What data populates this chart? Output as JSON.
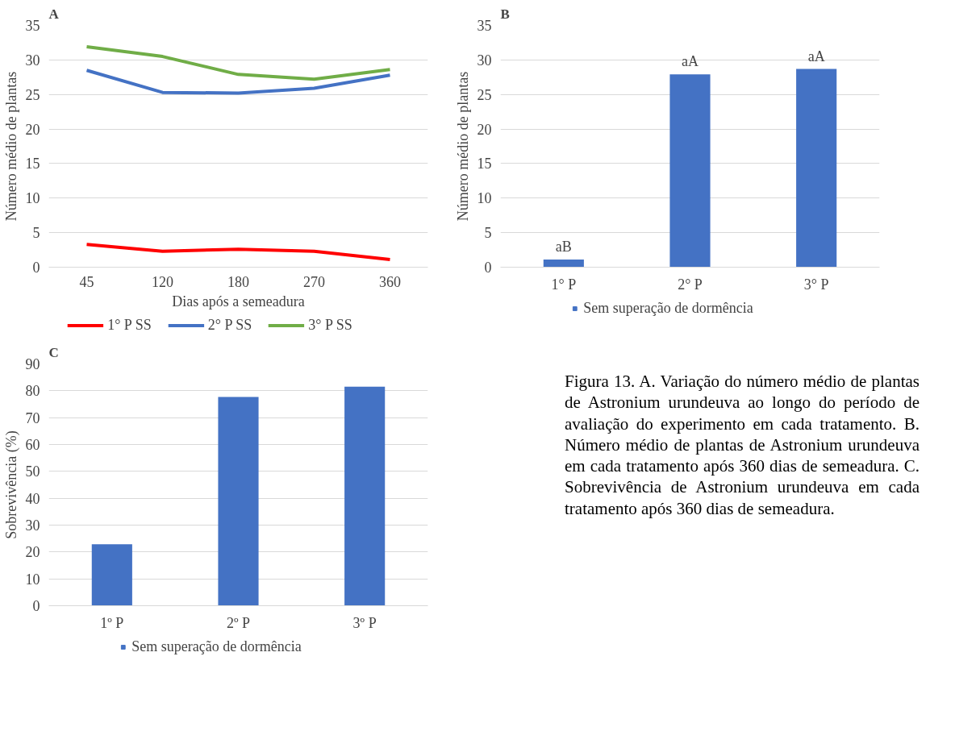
{
  "chart_data": [
    {
      "type": "line",
      "title": "A",
      "xlabel": "Dias após a semeadura",
      "ylabel": "Número médio de plantas",
      "categories": [
        "45",
        "120",
        "180",
        "270",
        "360"
      ],
      "ylim": [
        0,
        35
      ],
      "yticks": [
        0,
        5,
        10,
        15,
        20,
        25,
        30,
        35
      ],
      "grid": "y",
      "legend": "bottom",
      "marker": "none",
      "line_style": "solid",
      "series": [
        {
          "name": "1° P SS",
          "color": "#ff0000",
          "values": [
            3.3,
            2.3,
            2.6,
            2.3,
            1.1
          ]
        },
        {
          "name": "2° P SS",
          "color": "#4472c4",
          "values": [
            28.5,
            25.3,
            25.2,
            25.9,
            27.8
          ]
        },
        {
          "name": "3° P SS",
          "color": "#70ad47",
          "values": [
            31.9,
            30.5,
            27.9,
            27.2,
            28.6
          ]
        }
      ]
    },
    {
      "type": "bar",
      "title": "B",
      "ylabel": "Número médio de plantas",
      "categories": [
        "1° P",
        "2° P",
        "3° P"
      ],
      "ylim": [
        0,
        35
      ],
      "yticks": [
        0,
        5,
        10,
        15,
        20,
        25,
        30,
        35
      ],
      "grid": "y",
      "legend": "bottom",
      "series": [
        {
          "name": "Sem superação de dormência",
          "color": "#4472c4",
          "values": [
            1.1,
            27.9,
            28.7
          ],
          "value_labels": [
            "aB",
            "aA",
            "aA"
          ]
        }
      ]
    },
    {
      "type": "bar",
      "title": "C",
      "ylabel": "Sobrevivência (%)",
      "categories": [
        "1º P",
        "2º P",
        "3º P"
      ],
      "ylim": [
        0,
        90
      ],
      "yticks": [
        0,
        10,
        20,
        30,
        40,
        50,
        60,
        70,
        80,
        90
      ],
      "grid": "y",
      "legend": "bottom",
      "series": [
        {
          "name": "Sem superação de dormência",
          "color": "#4472c4",
          "values": [
            22.9,
            77.7,
            81.5
          ]
        }
      ]
    },
    {
      "type": "other",
      "annotations": [
        "Figura 13. A. Variação do número médio de plantas de Astronium urundeuva ao longo do período de avaliação do experimento em cada tratamento. B. Número médio de plantas de Astronium urundeuva em cada tratamento após 360 dias de semeadura. C. Sobrevivência de Astronium urundeuva em cada tratamento após 360 dias de semeadura."
      ]
    }
  ]
}
